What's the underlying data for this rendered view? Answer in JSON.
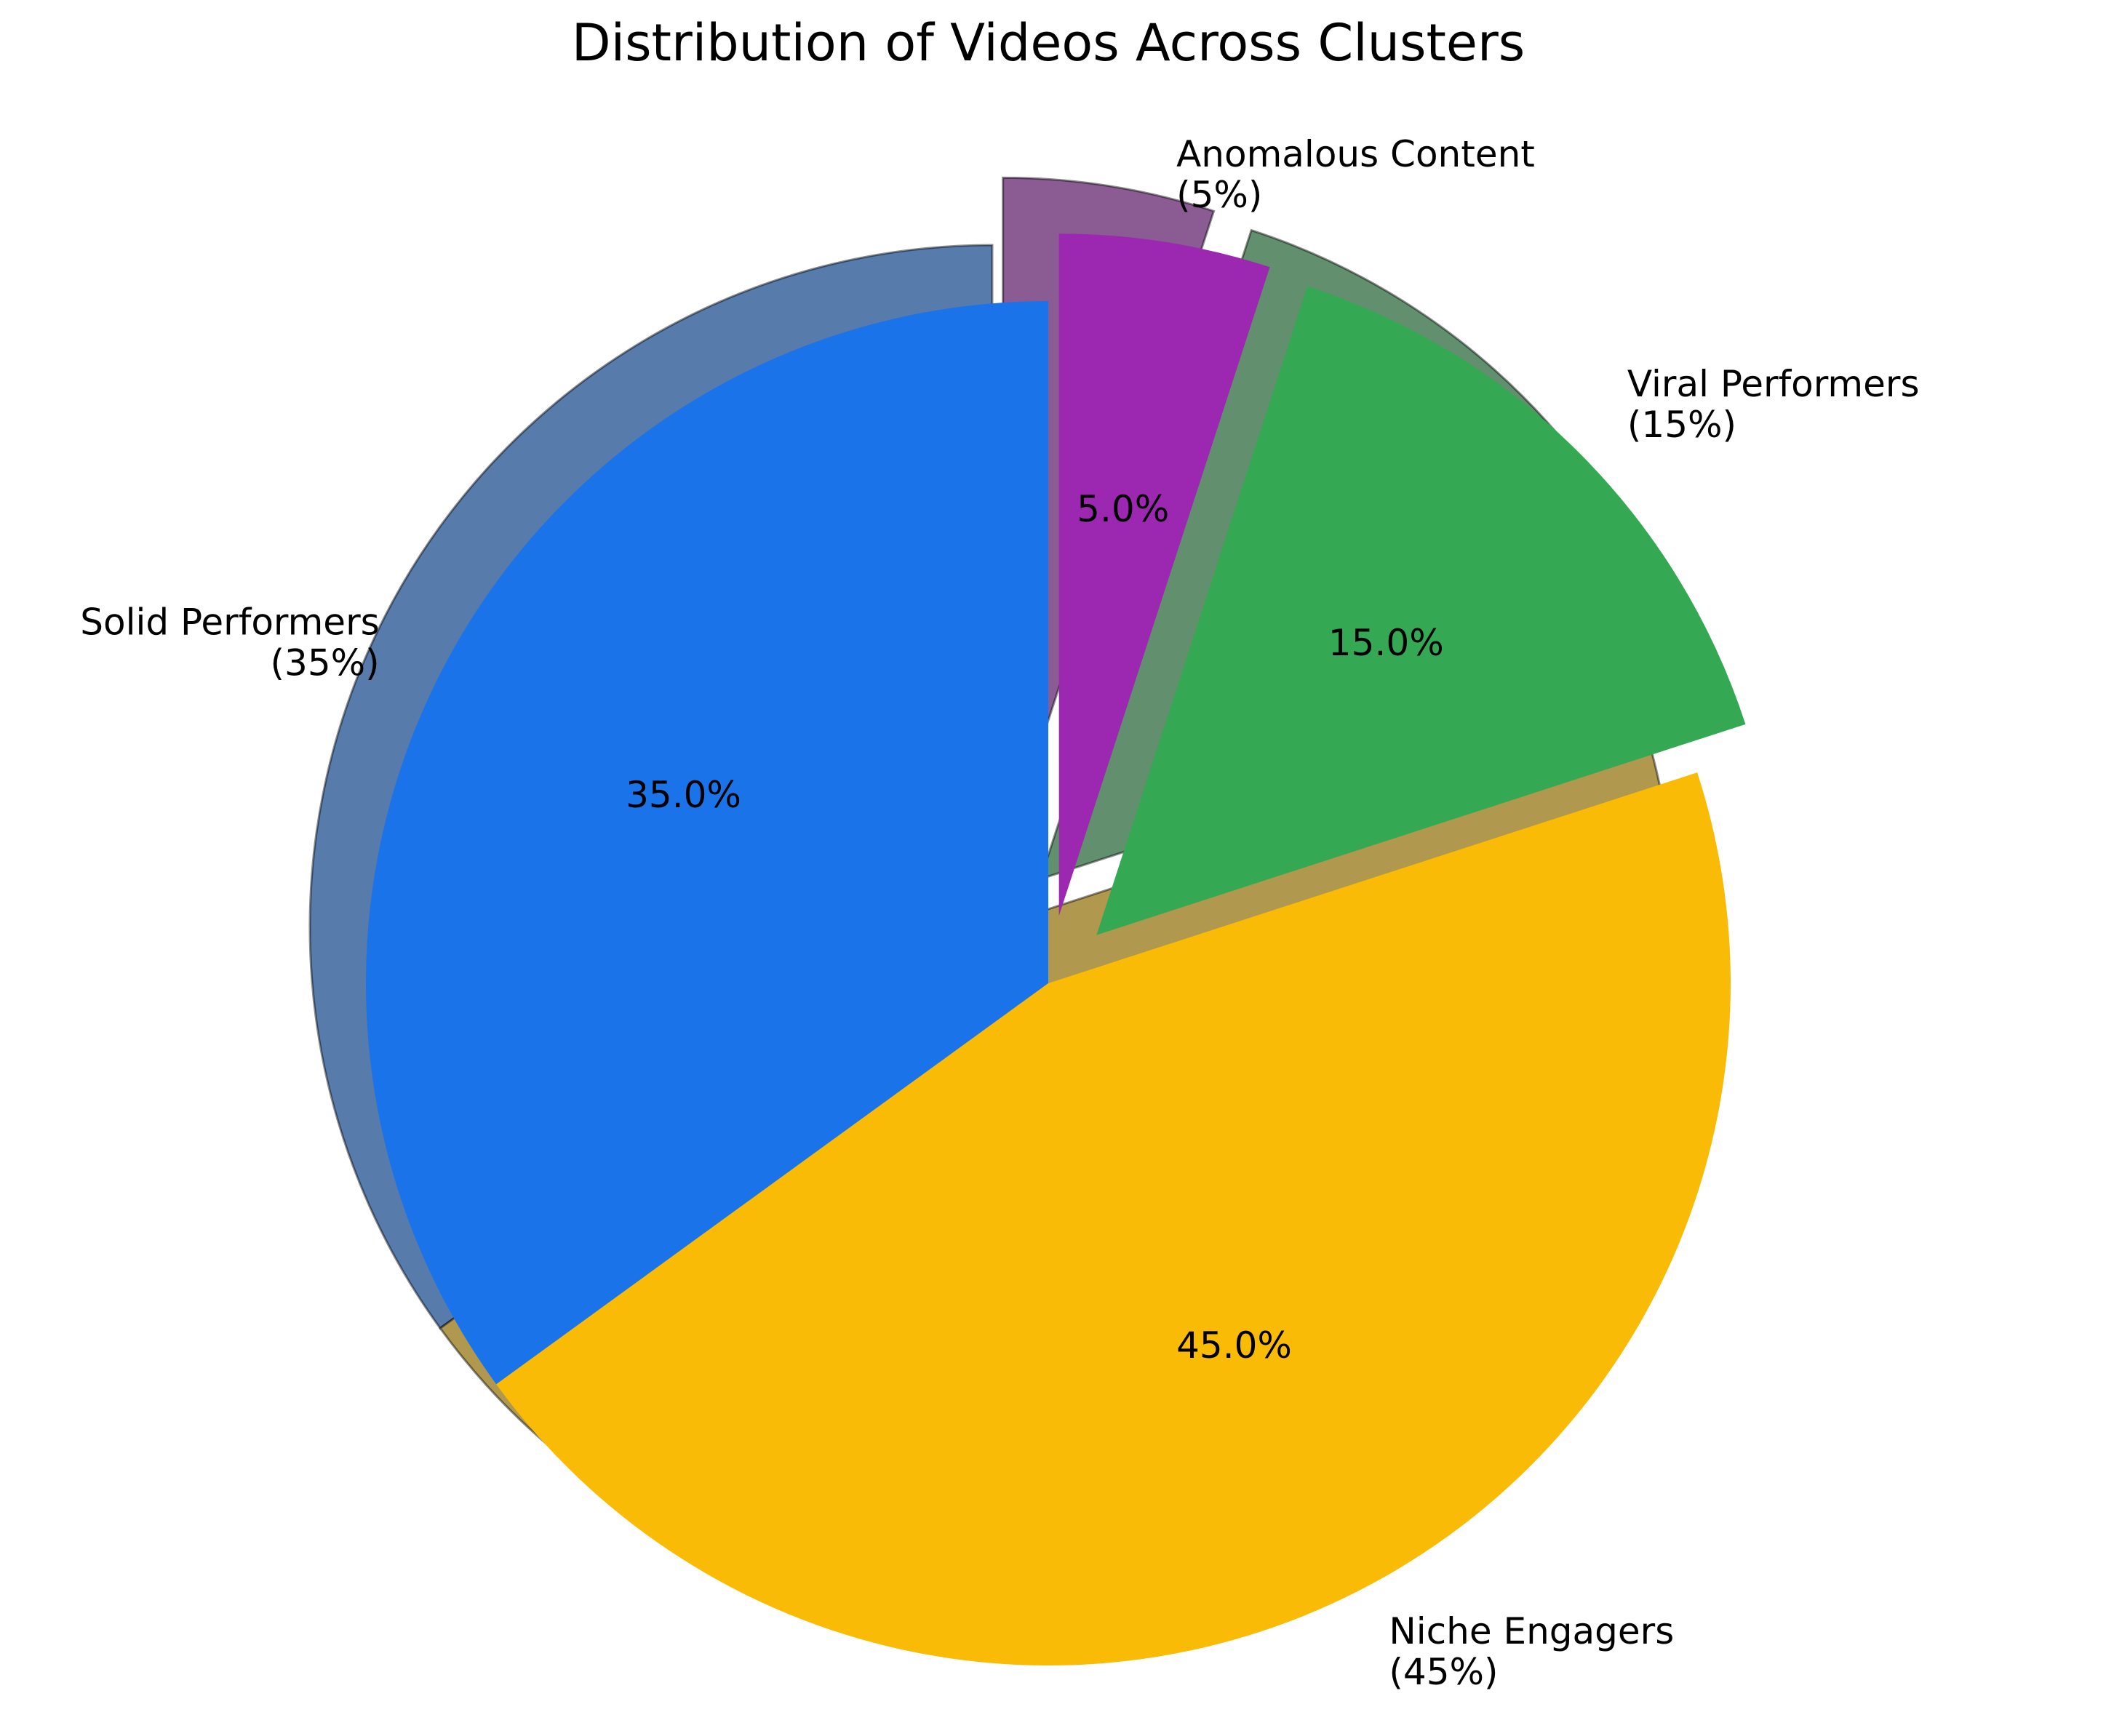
{
  "chart_data": {
    "type": "pie",
    "title": "Distribution of Videos Across Clusters",
    "categories": [
      "Solid Performers",
      "Niche Engagers",
      "Viral Performers",
      "Anomalous Content"
    ],
    "values": [
      35,
      45,
      15,
      5
    ],
    "labels": [
      "Solid Performers\n(35%)",
      "Niche Engagers\n(45%)",
      "Viral Performers\n(15%)",
      "Anomalous Content\n(5%)"
    ],
    "percent_labels": [
      "35.0%",
      "45.0%",
      "15.0%",
      "5.0%"
    ],
    "colors": [
      "#1A73E8",
      "#F9BB05",
      "#34A853",
      "#9C27B0"
    ],
    "exploded": [
      false,
      false,
      true,
      true
    ],
    "start_angle": 90,
    "direction": "counterclockwise",
    "shadow": true
  }
}
